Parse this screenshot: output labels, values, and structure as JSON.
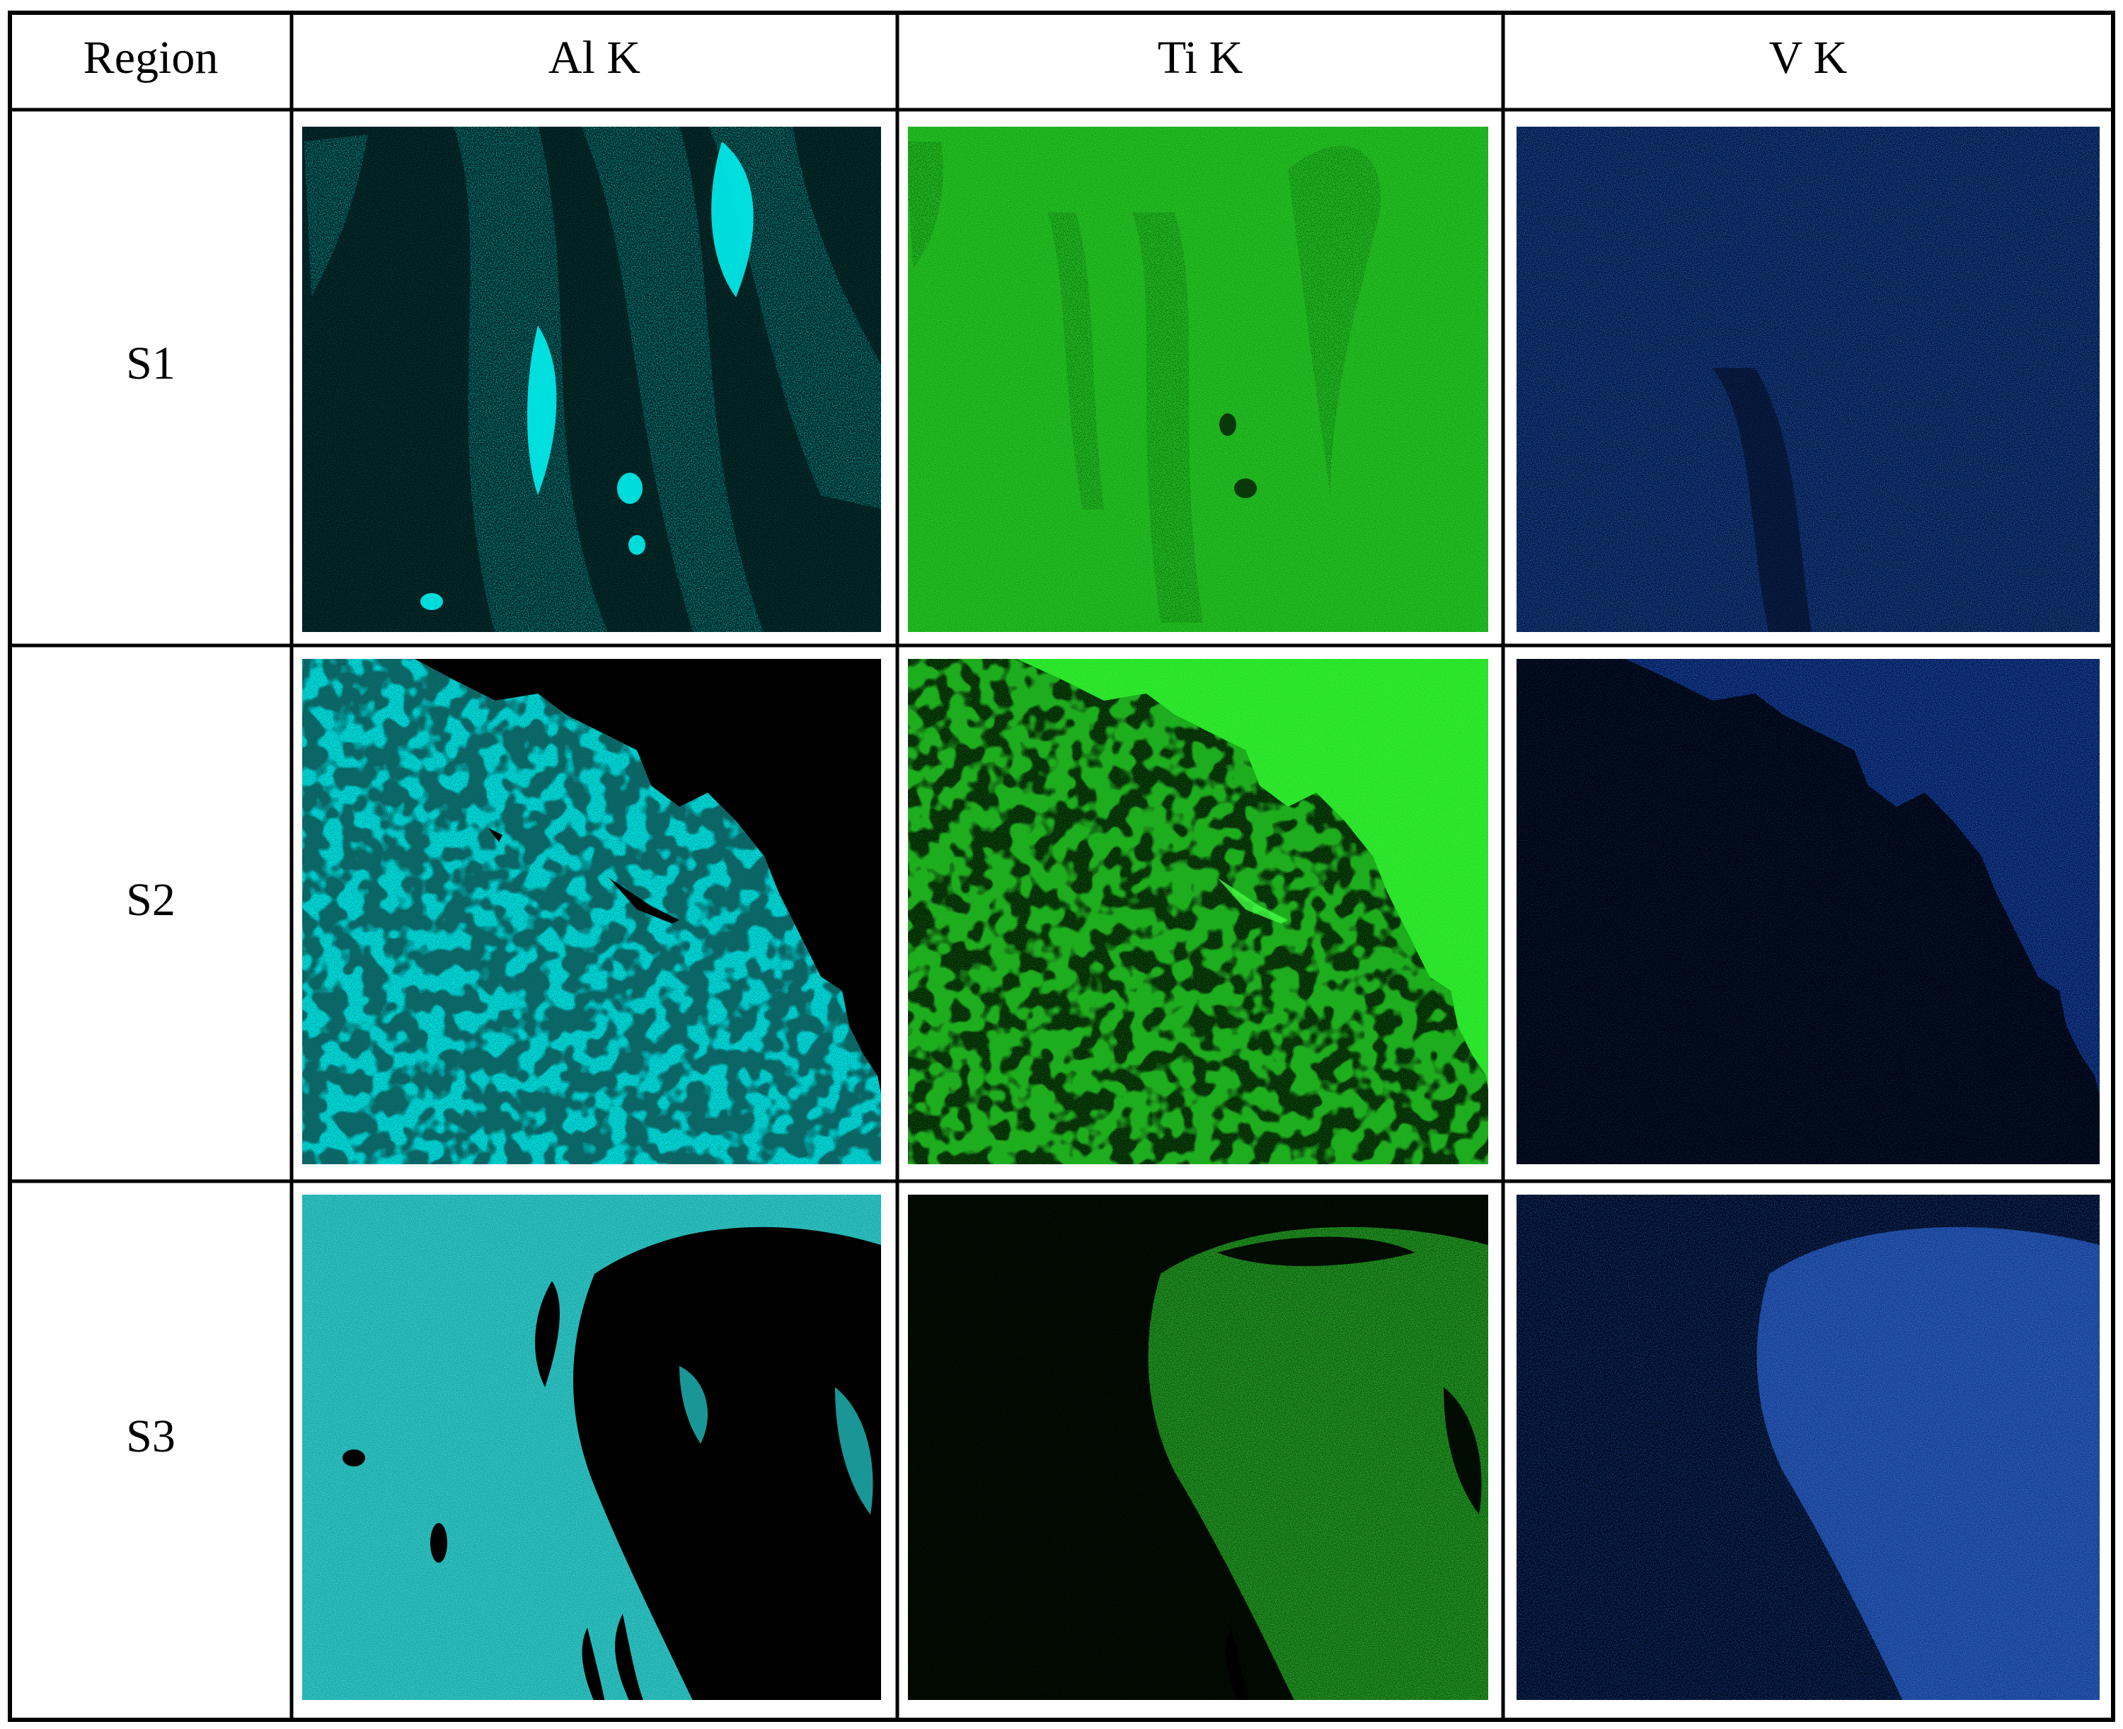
{
  "table": {
    "header": {
      "region_label": "Region",
      "elements": [
        {
          "label": "Al K",
          "color": "#00e5e5",
          "dark": "#031414"
        },
        {
          "label": "Ti K",
          "color": "#22ee22",
          "dark": "#041604"
        },
        {
          "label": "V K",
          "color": "#2a6ad6",
          "dark": "#02081a"
        }
      ]
    },
    "rows": [
      {
        "label": "S1"
      },
      {
        "label": "S2"
      },
      {
        "label": "S3"
      }
    ]
  }
}
